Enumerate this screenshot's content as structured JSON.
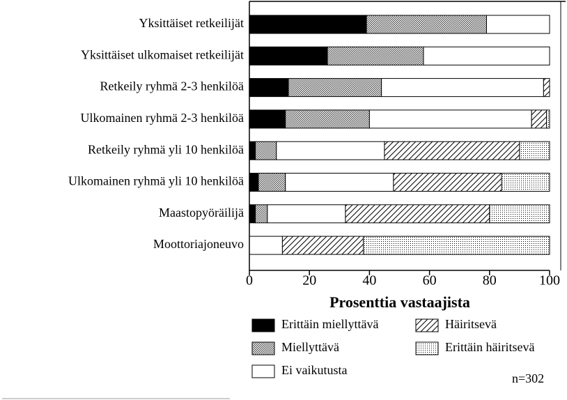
{
  "chart_data": {
    "type": "stacked-barh",
    "xlabel": "Prosenttia vastaajista",
    "annotation": "n=302",
    "categories": [
      "Yksittäiset retkeilijät",
      "Yksittäiset ulkomaiset retkeilijät",
      "Retkeily ryhmä 2-3 henkilöä",
      "Ulkomainen ryhmä 2-3 henkilöä",
      "Retkeily ryhmä yli 10 henkilöä",
      "Ulkomainen ryhmä yli 10 henkilöä",
      "Maastopyöräilijä",
      "Moottoriajoneuvo"
    ],
    "series": [
      {
        "name": "Erittäin miellyttävä",
        "color": "#000000",
        "pattern": "solid",
        "values": [
          39,
          26,
          13,
          12,
          2,
          3,
          2,
          0
        ]
      },
      {
        "name": "Miellyttävä",
        "color": "#555555",
        "pattern": "stipple",
        "values": [
          40,
          32,
          31,
          28,
          7,
          9,
          4,
          0
        ]
      },
      {
        "name": "Ei vaikutusta",
        "color": "#ffffff",
        "pattern": "blank",
        "values": [
          21,
          42,
          54,
          54,
          36,
          36,
          26,
          11
        ]
      },
      {
        "name": "Häiritsevä",
        "color": "#000000",
        "pattern": "hatch",
        "values": [
          0,
          0,
          2,
          5,
          45,
          36,
          48,
          27
        ]
      },
      {
        "name": "Erittäin häiritsevä",
        "color": "#000000",
        "pattern": "dots",
        "values": [
          0,
          0,
          0,
          1,
          10,
          16,
          20,
          62
        ]
      }
    ],
    "xlim": [
      0,
      100
    ],
    "xticks": [
      0,
      20,
      40,
      60,
      80,
      100
    ]
  }
}
